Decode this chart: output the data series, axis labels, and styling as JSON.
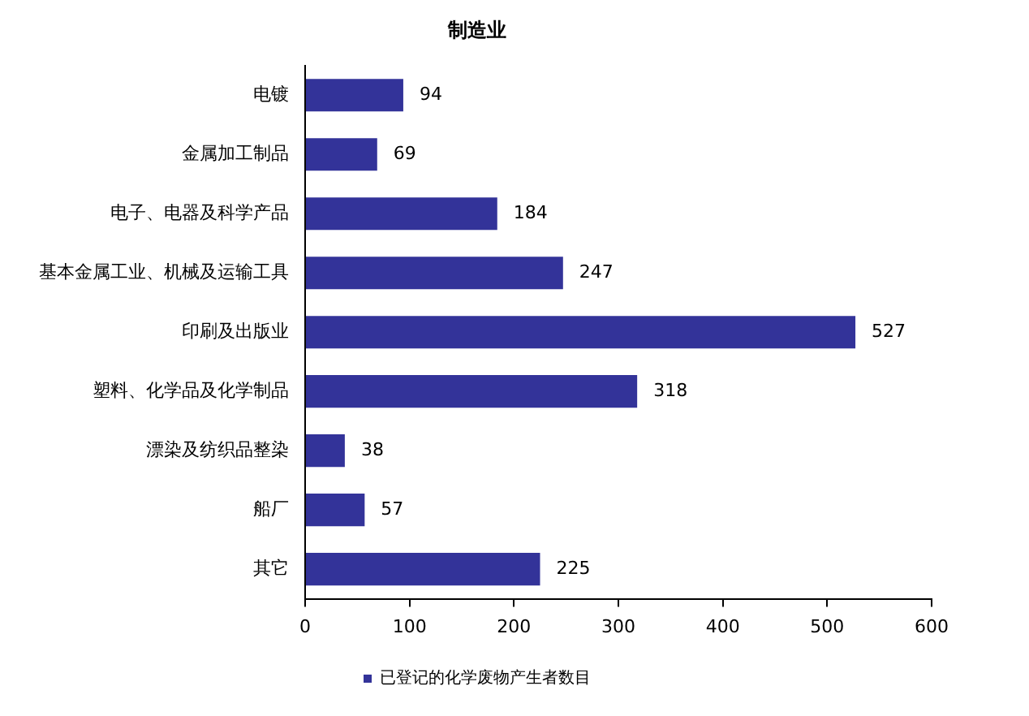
{
  "chart_data": {
    "type": "bar",
    "orientation": "horizontal",
    "title": "制造业",
    "categories": [
      "电镀",
      "金属加工制品",
      "电子、电器及科学产品",
      "基本金属工业、机械及运输工具",
      "印刷及出版业",
      "塑料、化学品及化学制品",
      "漂染及纺织品整染",
      "船厂",
      "其它"
    ],
    "series": [
      {
        "name": "已登记的化学废物产生者数目",
        "color": "#333399",
        "values": [
          94,
          69,
          184,
          247,
          527,
          318,
          38,
          57,
          225
        ]
      }
    ],
    "xlim": [
      0,
      600
    ],
    "xticks": [
      0,
      100,
      200,
      300,
      400,
      500,
      600
    ],
    "data_labels": true,
    "grid": false,
    "legend": "bottom"
  }
}
